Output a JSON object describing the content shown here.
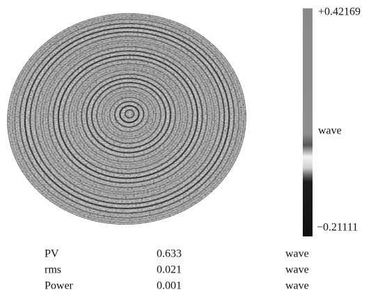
{
  "colorbar": {
    "max_label": "+0.42169",
    "unit_label": "wave",
    "min_label": "−0.21111"
  },
  "table": {
    "rows": [
      [
        "PV",
        "0.633",
        "wave"
      ],
      [
        "rms",
        "0.021",
        "wave"
      ],
      [
        "Power",
        "0.001",
        "wave"
      ]
    ]
  }
}
